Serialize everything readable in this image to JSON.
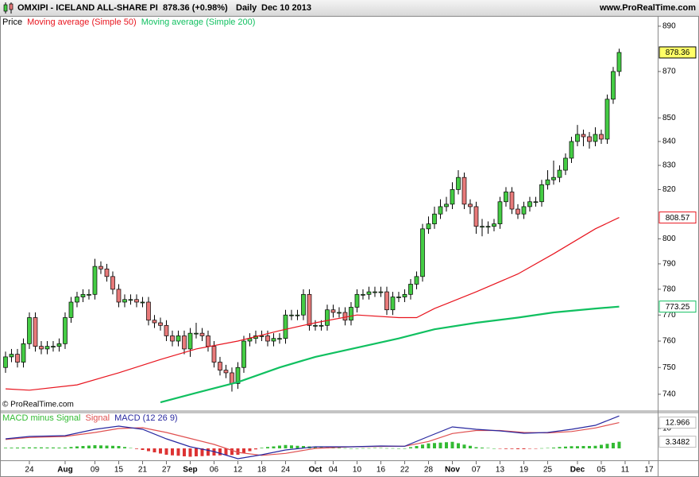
{
  "header": {
    "symbol": "OMXIPI - ICELAND ALL-SHARE PI",
    "quote": "878.36 (+0.98%)",
    "period": "Daily",
    "date": "Dec 10 2013",
    "site": "www.ProRealTime.com"
  },
  "copyright": "© ProRealTime.com",
  "chart_data": [
    {
      "type": "candlestick",
      "legend_label": "Price",
      "up_color": "#44cc44",
      "down_color": "#e87a7a",
      "log_scale": true,
      "open": [
        750,
        754,
        755,
        752,
        759,
        769,
        758,
        757,
        758,
        758,
        759,
        769,
        775,
        777,
        778,
        778,
        789,
        788,
        785,
        780,
        775,
        776,
        776,
        775,
        775,
        768,
        767,
        766,
        762,
        760,
        762,
        757,
        763,
        763,
        762,
        758,
        752,
        749,
        748,
        744,
        750,
        760,
        761,
        762,
        762,
        760,
        761,
        761,
        770,
        770,
        770,
        778,
        766,
        766,
        766,
        772,
        771,
        771,
        768,
        773,
        778,
        778,
        779,
        779,
        779,
        772,
        777,
        777,
        778,
        782,
        785,
        804,
        806,
        810,
        813,
        814,
        820,
        825,
        814,
        813,
        805,
        805,
        805,
        806,
        815,
        819,
        812,
        810,
        813,
        815,
        815,
        822,
        824,
        825,
        828,
        833,
        840,
        843,
        842,
        840,
        843,
        841,
        858,
        870
      ],
      "high": [
        756,
        757,
        757,
        761,
        771,
        771,
        760,
        760,
        760,
        761,
        771,
        777,
        779,
        780,
        780,
        792,
        791,
        790,
        787,
        782,
        778,
        778,
        778,
        777,
        777,
        770,
        769,
        768,
        764,
        764,
        764,
        765,
        767,
        765,
        764,
        760,
        754,
        751,
        750,
        752,
        762,
        763,
        764,
        764,
        764,
        763,
        763,
        772,
        772,
        772,
        780,
        780,
        768,
        768,
        774,
        774,
        773,
        773,
        775,
        780,
        780,
        781,
        781,
        781,
        781,
        779,
        779,
        780,
        784,
        787,
        806,
        809,
        813,
        816,
        817,
        823,
        828,
        827,
        816,
        815,
        808,
        807,
        808,
        817,
        821,
        821,
        814,
        815,
        817,
        817,
        824,
        828,
        832,
        830,
        835,
        842,
        847,
        845,
        844,
        846,
        845,
        860,
        872,
        880
      ],
      "low": [
        748,
        752,
        750,
        750,
        757,
        756,
        755,
        755,
        756,
        756,
        757,
        767,
        773,
        775,
        776,
        776,
        786,
        783,
        778,
        773,
        773,
        774,
        773,
        773,
        766,
        765,
        764,
        760,
        758,
        758,
        755,
        754,
        761,
        760,
        756,
        750,
        747,
        746,
        741,
        742,
        748,
        758,
        759,
        760,
        758,
        758,
        759,
        759,
        768,
        768,
        768,
        764,
        764,
        764,
        764,
        769,
        769,
        766,
        766,
        771,
        776,
        776,
        777,
        777,
        770,
        770,
        775,
        775,
        776,
        780,
        783,
        802,
        804,
        808,
        811,
        812,
        818,
        812,
        810,
        802,
        801,
        802,
        803,
        804,
        813,
        810,
        808,
        808,
        811,
        813,
        813,
        820,
        822,
        823,
        826,
        831,
        838,
        838,
        837,
        838,
        839,
        839,
        856,
        868
      ],
      "close": [
        754,
        755,
        752,
        759,
        769,
        758,
        757,
        758,
        758,
        759,
        769,
        775,
        777,
        778,
        778,
        789,
        788,
        785,
        780,
        775,
        776,
        776,
        775,
        775,
        768,
        767,
        766,
        762,
        760,
        762,
        757,
        763,
        763,
        762,
        758,
        752,
        749,
        748,
        744,
        750,
        760,
        761,
        762,
        762,
        760,
        761,
        761,
        770,
        770,
        770,
        778,
        766,
        766,
        766,
        772,
        771,
        771,
        768,
        773,
        778,
        778,
        779,
        779,
        779,
        772,
        777,
        777,
        778,
        782,
        785,
        804,
        806,
        810,
        813,
        814,
        820,
        825,
        814,
        813,
        805,
        805,
        805,
        806,
        815,
        819,
        812,
        810,
        813,
        815,
        815,
        822,
        824,
        825,
        828,
        833,
        840,
        843,
        842,
        840,
        843,
        841,
        858,
        870,
        878.36
      ],
      "series": [
        {
          "name": "Moving average (Simple 50)",
          "color": "#e8141e",
          "x": [
            0,
            4,
            12,
            19,
            26,
            32,
            39,
            46,
            52,
            59,
            66,
            69,
            72,
            79,
            86,
            92,
            99,
            103
          ],
          "values": [
            742,
            741.5,
            743.5,
            748,
            753,
            757,
            760,
            764,
            767,
            770,
            769,
            769,
            772.5,
            779,
            786,
            794,
            804,
            808.57
          ]
        },
        {
          "name": "Moving average (Simple 200)",
          "color": "#10c060",
          "x": [
            26,
            32,
            39,
            46,
            52,
            59,
            66,
            72,
            79,
            86,
            92,
            99,
            103
          ],
          "values": [
            737,
            740.5,
            744.5,
            750,
            754,
            757.5,
            761,
            764.5,
            767,
            769,
            771,
            772.5,
            773.25
          ]
        }
      ],
      "ylim": [
        734.1,
        894.6
      ],
      "yticks": [
        740,
        750,
        760,
        770,
        780,
        790,
        800,
        820,
        830,
        840,
        850,
        870,
        890
      ],
      "xlim": [
        -0.93,
        109.47
      ],
      "xticks": [
        {
          "value": 4,
          "label": "24"
        },
        {
          "value": 10,
          "label": "Aug"
        },
        {
          "value": 15,
          "label": "09"
        },
        {
          "value": 19,
          "label": "15"
        },
        {
          "value": 23,
          "label": "21"
        },
        {
          "value": 27,
          "label": "27"
        },
        {
          "value": 31,
          "label": "Sep"
        },
        {
          "value": 35,
          "label": "06"
        },
        {
          "value": 39,
          "label": "12"
        },
        {
          "value": 43,
          "label": "18"
        },
        {
          "value": 47,
          "label": "24"
        },
        {
          "value": 52,
          "label": "Oct"
        },
        {
          "value": 55,
          "label": "04"
        },
        {
          "value": 59,
          "label": "10"
        },
        {
          "value": 63,
          "label": "16"
        },
        {
          "value": 67,
          "label": "22"
        },
        {
          "value": 71,
          "label": "28"
        },
        {
          "value": 75,
          "label": "Nov"
        },
        {
          "value": 79,
          "label": "07"
        },
        {
          "value": 83,
          "label": "13"
        },
        {
          "value": 87,
          "label": "19"
        },
        {
          "value": 91,
          "label": "25"
        },
        {
          "value": 96,
          "label": "Dec"
        },
        {
          "value": 100,
          "label": "05"
        },
        {
          "value": 104,
          "label": "11"
        },
        {
          "value": 108,
          "label": "17"
        }
      ]
    },
    {
      "type": "macd",
      "histogram": {
        "name": "MACD minus Signal",
        "up_color": "#33bb33",
        "down_color": "#dd3333",
        "values": [
          0.3,
          0.35,
          0.4,
          0.45,
          0.5,
          0.5,
          0.5,
          0.45,
          0.45,
          0.4,
          0.4,
          0.7,
          1.0,
          1.2,
          1.4,
          1.6,
          1.5,
          1.4,
          1.3,
          1.2,
          0.7,
          0.2,
          -0.3,
          -0.8,
          -1.4,
          -2.0,
          -2.6,
          -3.2,
          -3.5,
          -3.7,
          -4.0,
          -4.2,
          -4.0,
          -3.9,
          -3.7,
          -3.6,
          -3.5,
          -3.4,
          -3.3,
          -3.2,
          -2.3,
          -1.4,
          -0.5,
          0.3,
          0.7,
          1.0,
          1.4,
          1.7,
          1.5,
          1.3,
          1.2,
          1.0,
          0.8,
          0.7,
          0.5,
          0.4,
          0.3,
          0.1,
          0,
          0,
          0.1,
          0.1,
          0.2,
          0.2,
          0.1,
          0.1,
          0,
          0,
          0.6,
          1.2,
          1.9,
          2.5,
          2.7,
          2.9,
          3.1,
          3.3,
          2.6,
          1.9,
          1.3,
          0.6,
          0.4,
          0.2,
          0,
          -0.2,
          -0.3,
          -0.3,
          -0.4,
          -0.4,
          -0.2,
          -0.1,
          0.1,
          0.2,
          0.4,
          0.7,
          0.9,
          1.1,
          1.1,
          1.2,
          1.2,
          1.3,
          1.8,
          2.3,
          2.8,
          3.3482
        ]
      },
      "series": [
        {
          "name": "Signal",
          "color": "#e05050",
          "x": [
            0,
            4,
            10,
            15,
            19,
            23,
            27,
            31,
            35,
            39,
            43,
            47,
            52,
            58,
            63,
            67,
            71,
            75,
            79,
            83,
            87,
            91,
            95,
            99,
            103
          ],
          "values": [
            4.5,
            5.5,
            6,
            8,
            10,
            10.4,
            8,
            5,
            2,
            -2,
            -3.5,
            -2.5,
            0,
            0.8,
            1,
            1.1,
            3.5,
            7.5,
            9,
            9,
            8,
            7.8,
            8.5,
            10.3,
            12.966
          ]
        },
        {
          "name": "MACD (12 26 9)",
          "color": "#2828a0",
          "x": [
            0,
            4,
            10,
            15,
            19,
            23,
            27,
            31,
            35,
            39,
            43,
            47,
            52,
            58,
            63,
            67,
            71,
            75,
            79,
            83,
            87,
            91,
            95,
            99,
            103
          ],
          "values": [
            4.8,
            6,
            6.4,
            9.6,
            11.2,
            9.6,
            4.8,
            0.8,
            -1.6,
            -5.2,
            -3.2,
            -0.8,
            0.8,
            0.8,
            1.2,
            1.1,
            6,
            10.8,
            9.6,
            8.8,
            7.6,
            8,
            9.6,
            11.6,
            16.31
          ]
        }
      ],
      "ylim": [
        -5.6,
        17.6
      ],
      "yticks": [
        10
      ]
    }
  ]
}
